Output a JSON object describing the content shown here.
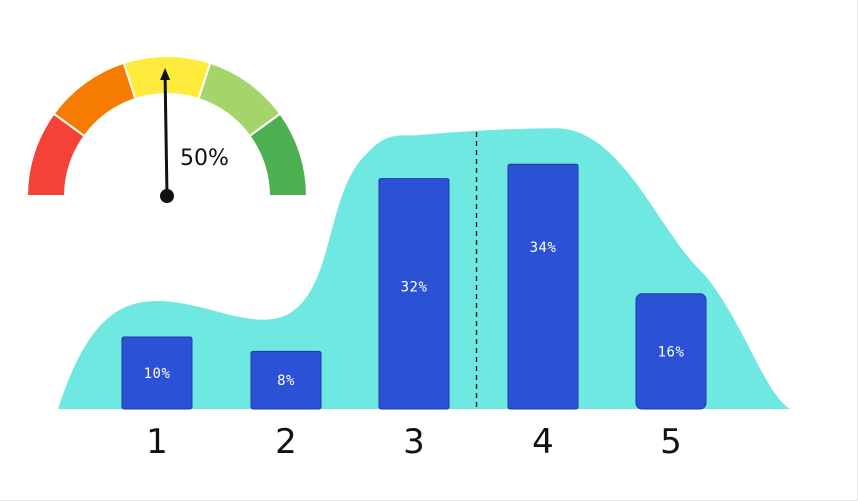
{
  "chart_data": [
    {
      "type": "bar",
      "categories": [
        "1",
        "2",
        "3",
        "4",
        "5"
      ],
      "values": [
        10,
        8,
        32,
        34,
        16
      ],
      "value_labels": [
        "10%",
        "8%",
        "32%",
        "34%",
        "16%"
      ],
      "title": "",
      "xlabel": "",
      "ylabel": "",
      "ylim": [
        0,
        40
      ],
      "grid": false,
      "background_area": {
        "type": "area",
        "values": [
          15,
          13,
          38,
          39,
          20
        ],
        "color": "#6ee8e0"
      },
      "divider_after_category": "3",
      "colors": {
        "bars": "#2b52d4",
        "bar_edge": "#1c3aa8"
      }
    },
    {
      "type": "gauge",
      "value": 50,
      "value_label": "50%",
      "range": [
        0,
        100
      ],
      "segments": [
        {
          "color": "#f44336"
        },
        {
          "color": "#f57c00"
        },
        {
          "color": "#ffeb3b"
        },
        {
          "color": "#a5d46a"
        },
        {
          "color": "#4caf50"
        }
      ]
    }
  ]
}
